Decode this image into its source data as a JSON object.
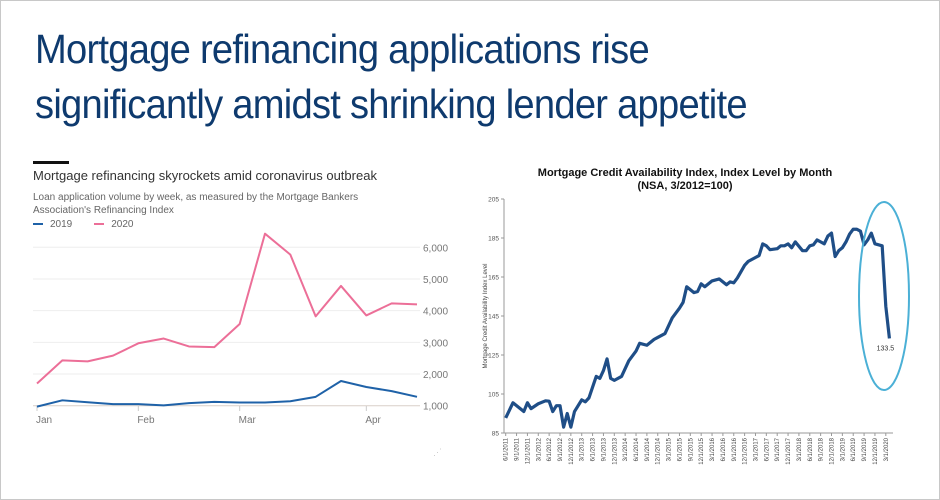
{
  "slide": {
    "title_lines": [
      "Mortgage refinancing applications rise",
      "significantly amidst shrinking lender appetite"
    ],
    "title_color": "#0e3a6e"
  },
  "chart_data": [
    {
      "type": "line",
      "title": "Mortgage refinancing skyrockets amid coronavirus outbreak",
      "subtitle": "Loan application volume by week, as measured by the Mortgage Bankers Association's Refinancing Index",
      "x_unit": "week",
      "x_tick_labels": [
        {
          "label": "Jan",
          "week": 0
        },
        {
          "label": "Feb",
          "week": 4
        },
        {
          "label": "Mar",
          "week": 8
        },
        {
          "label": "Apr",
          "week": 13
        }
      ],
      "y_ticks": [
        "1,000",
        "2,000",
        "3,000",
        "4,000",
        "5,000",
        "6,000"
      ],
      "y_tick_values": [
        1000,
        2000,
        3000,
        4000,
        5000,
        6000
      ],
      "ylim": [
        1000,
        6500
      ],
      "grid": true,
      "legend": "top-left",
      "series": [
        {
          "name": "2019",
          "color": "#1f62a8",
          "values": [
            970,
            1170,
            1110,
            1050,
            1050,
            1010,
            1080,
            1120,
            1100,
            1100,
            1140,
            1280,
            1780,
            1590,
            1460,
            1280
          ]
        },
        {
          "name": "2020",
          "color": "#ec6f98",
          "values": [
            1700,
            2430,
            2400,
            2580,
            2970,
            3120,
            2870,
            2850,
            3580,
            6430,
            5770,
            3820,
            4780,
            3850,
            4230,
            4200
          ]
        }
      ]
    },
    {
      "type": "line",
      "title": "Mortgage Credit Availability Index, Index Level by Month",
      "subtitle": "(NSA, 3/2012=100)",
      "ylabel": "Mortgage Credit Availability Index Level",
      "ylim": [
        85,
        205
      ],
      "y_ticks": [
        85,
        105,
        125,
        145,
        165,
        185,
        205
      ],
      "x_tick_labels": [
        "6/1/2011",
        "9/1/2011",
        "12/1/2011",
        "3/1/2012",
        "6/1/2012",
        "9/1/2012",
        "12/1/2012",
        "3/1/2013",
        "6/1/2013",
        "9/1/2013",
        "12/1/2013",
        "3/1/2014",
        "6/1/2014",
        "9/1/2014",
        "12/1/2014",
        "3/1/2015",
        "6/1/2015",
        "9/1/2015",
        "12/1/2015",
        "3/1/2016",
        "6/1/2016",
        "9/1/2016",
        "12/1/2016",
        "3/1/2017",
        "6/1/2017",
        "9/1/2017",
        "12/1/2017",
        "3/1/2018",
        "6/1/2018",
        "9/1/2018",
        "12/1/2018",
        "3/1/2019",
        "6/1/2019",
        "9/1/2019",
        "12/1/2019",
        "3/1/2020"
      ],
      "line_color": "#1f4e87",
      "highlight_color": "#4bb0d6",
      "annotation": "133.5",
      "points": [
        [
          "2011-06",
          92.7
        ],
        [
          "2011-08",
          100.5
        ],
        [
          "2011-11",
          96
        ],
        [
          "2011-12",
          100.5
        ],
        [
          "2012-01",
          97.5
        ],
        [
          "2012-03",
          100
        ],
        [
          "2012-05",
          101.5
        ],
        [
          "2012-06",
          101.3
        ],
        [
          "2012-07",
          96
        ],
        [
          "2012-08",
          99
        ],
        [
          "2012-09",
          99
        ],
        [
          "2012-10",
          88
        ],
        [
          "2012-11",
          95
        ],
        [
          "2012-12",
          88
        ],
        [
          "2013-01",
          96
        ],
        [
          "2013-03",
          102
        ],
        [
          "2013-04",
          101
        ],
        [
          "2013-05",
          103
        ],
        [
          "2013-07",
          114
        ],
        [
          "2013-08",
          113
        ],
        [
          "2013-09",
          117
        ],
        [
          "2013-10",
          123
        ],
        [
          "2013-11",
          113
        ],
        [
          "2013-12",
          112
        ],
        [
          "2014-02",
          114
        ],
        [
          "2014-04",
          122
        ],
        [
          "2014-06",
          127
        ],
        [
          "2014-07",
          131
        ],
        [
          "2014-09",
          130
        ],
        [
          "2014-11",
          133
        ],
        [
          "2014-12",
          134
        ],
        [
          "2015-02",
          136
        ],
        [
          "2015-04",
          144
        ],
        [
          "2015-06",
          149
        ],
        [
          "2015-07",
          152
        ],
        [
          "2015-08",
          160
        ],
        [
          "2015-10",
          157
        ],
        [
          "2015-11",
          157.5
        ],
        [
          "2015-12",
          161.5
        ],
        [
          "2016-01",
          160
        ],
        [
          "2016-03",
          163
        ],
        [
          "2016-05",
          164
        ],
        [
          "2016-07",
          161
        ],
        [
          "2016-08",
          162.5
        ],
        [
          "2016-09",
          162
        ],
        [
          "2016-10",
          164.5
        ],
        [
          "2016-12",
          171
        ],
        [
          "2017-01",
          173
        ],
        [
          "2017-03",
          175
        ],
        [
          "2017-04",
          176
        ],
        [
          "2017-05",
          182
        ],
        [
          "2017-06",
          181
        ],
        [
          "2017-07",
          179
        ],
        [
          "2017-09",
          179.5
        ],
        [
          "2017-10",
          181
        ],
        [
          "2017-11",
          181
        ],
        [
          "2017-12",
          182
        ],
        [
          "2018-01",
          180
        ],
        [
          "2018-02",
          183
        ],
        [
          "2018-04",
          178.5
        ],
        [
          "2018-05",
          178.5
        ],
        [
          "2018-06",
          181
        ],
        [
          "2018-07",
          181.5
        ],
        [
          "2018-08",
          184
        ],
        [
          "2018-09",
          183
        ],
        [
          "2018-10",
          182
        ],
        [
          "2018-11",
          186
        ],
        [
          "2018-12",
          187.5
        ],
        [
          "2019-01",
          175.5
        ],
        [
          "2019-02",
          178.5
        ],
        [
          "2019-03",
          180
        ],
        [
          "2019-04",
          183
        ],
        [
          "2019-05",
          187
        ],
        [
          "2019-06",
          189.5
        ],
        [
          "2019-07",
          189.5
        ],
        [
          "2019-08",
          188.5
        ],
        [
          "2019-09",
          181.5
        ],
        [
          "2019-10",
          184
        ],
        [
          "2019-11",
          187.5
        ],
        [
          "2019-12",
          182
        ],
        [
          "2020-01",
          181.5
        ],
        [
          "2020-02",
          181
        ],
        [
          "2020-03",
          150
        ],
        [
          "2020-04",
          133.5
        ]
      ]
    }
  ]
}
